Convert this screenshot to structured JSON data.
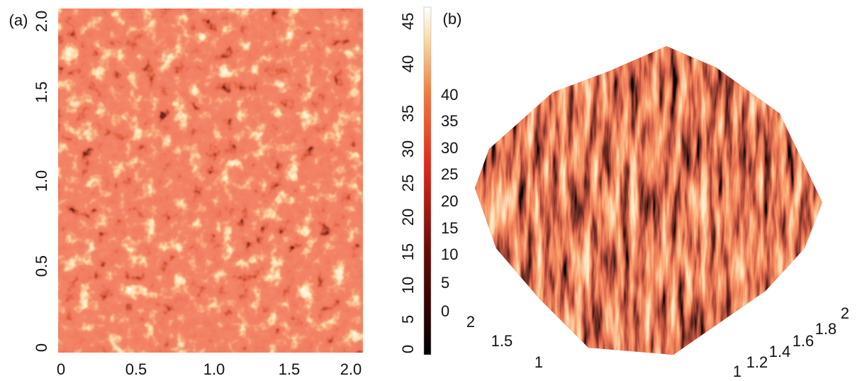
{
  "panels": [
    {
      "label": "(a)",
      "y_ticks": [
        "0",
        "0.5",
        "1.0",
        "1.5",
        "2.0"
      ],
      "x_ticks": [
        "0",
        "0.5",
        "1.0",
        "1.5",
        "2.0"
      ]
    },
    {
      "label": "(b)",
      "colorbar_ticks_outer": [
        "0",
        "5",
        "10",
        "15",
        "20",
        "25",
        "30",
        "35",
        "40",
        "45"
      ],
      "colorbar_ticks_inner": [
        "0",
        "5",
        "10",
        "15",
        "20",
        "25",
        "30",
        "35",
        "40"
      ],
      "left_axis_ticks": [
        "2",
        "1.5",
        "1"
      ],
      "right_axis_ticks": [
        "1",
        "1.2",
        "1.4",
        "1.6",
        "1.8",
        "2"
      ]
    }
  ]
}
